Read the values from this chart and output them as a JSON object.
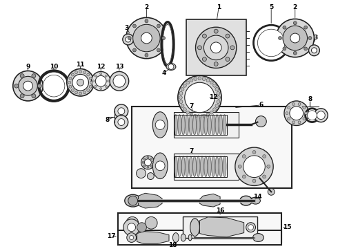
{
  "background_color": "#ffffff",
  "line_color": "#222222",
  "text_color": "#000000",
  "fig_width": 4.9,
  "fig_height": 3.6,
  "dpi": 100
}
